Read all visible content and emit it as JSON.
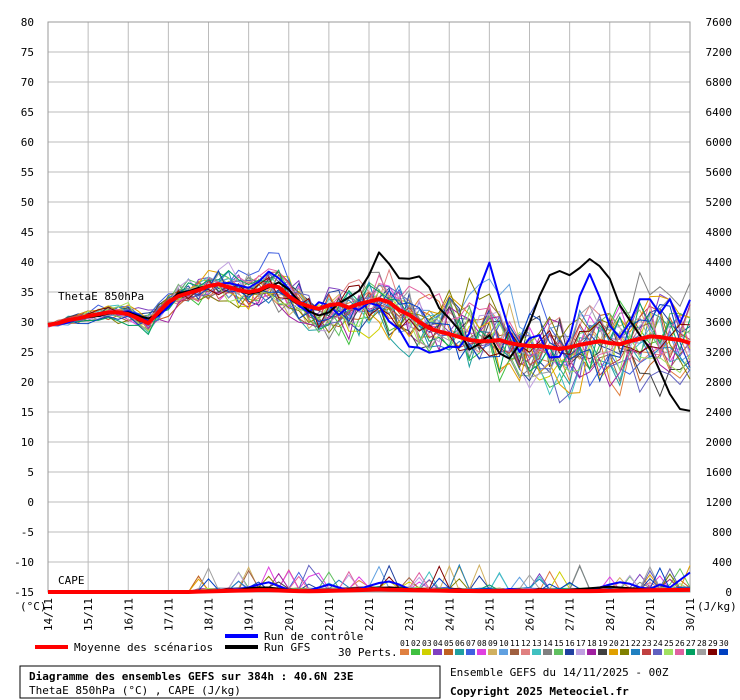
{
  "chart_data": {
    "type": "line",
    "title": "Diagramme des ensembles GEFS sur 384h : 40.6N 23E",
    "subtitle": "ThetaE 850hPa (°C) , CAPE (J/kg)",
    "run_label": "Ensemble GEFS du 14/11/2025 - 00Z",
    "copyright": "Copyright 2025 Meteociel.fr",
    "y_left_unit": "(°C)",
    "y_right_unit": "(J/kg)",
    "y_left_ticks": [
      80,
      75,
      70,
      65,
      60,
      55,
      50,
      45,
      40,
      35,
      30,
      25,
      20,
      15,
      10,
      5,
      0,
      -5,
      -10,
      -15
    ],
    "y_right_ticks": [
      7600,
      7200,
      6800,
      6400,
      6000,
      5600,
      5200,
      4800,
      4400,
      4000,
      3600,
      3200,
      2800,
      2400,
      2000,
      1600,
      1200,
      800,
      400,
      0
    ],
    "ylim_left": [
      -15,
      80
    ],
    "ylim_right": [
      0,
      7600
    ],
    "x_ticks": [
      "14/11",
      "15/11",
      "16/11",
      "17/11",
      "18/11",
      "19/11",
      "20/11",
      "21/11",
      "22/11",
      "23/11",
      "24/11",
      "25/11",
      "26/11",
      "27/11",
      "28/11",
      "29/11",
      "30/11"
    ],
    "panel_labels": {
      "thetae": "ThetaE 850hPa",
      "cape": "CAPE"
    },
    "legend": {
      "mean": "Moyenne des scénarios",
      "control": "Run de contrôle",
      "gfs": "Run GFS",
      "perts": "30 Perts.",
      "pert_ids": [
        "01",
        "02",
        "03",
        "04",
        "05",
        "06",
        "07",
        "08",
        "09",
        "10",
        "11",
        "12",
        "13",
        "14",
        "15",
        "16",
        "17",
        "18",
        "19",
        "20",
        "21",
        "22",
        "23",
        "24",
        "25",
        "26",
        "27",
        "28",
        "29",
        "30"
      ],
      "pert_colors": [
        "#e08040",
        "#40c040",
        "#d0d000",
        "#8040c0",
        "#c06020",
        "#20a0a0",
        "#4060e0",
        "#e040e0",
        "#d0b060",
        "#60a0e0",
        "#a06040",
        "#e08080",
        "#40c0c0",
        "#808080",
        "#60c060",
        "#2040a0",
        "#c0a0e0",
        "#a020a0",
        "#404040",
        "#e0a000",
        "#808000",
        "#2080c0",
        "#c04040",
        "#6060c0",
        "#a0e060",
        "#e060a0",
        "#00a060",
        "#a0a0a0",
        "#800000",
        "#0040c0"
      ],
      "mean_color": "#ff0000",
      "control_color": "#0000ff",
      "gfs_color": "#000000"
    },
    "x": [
      0,
      6,
      12,
      18,
      24,
      30,
      36,
      42,
      48,
      54,
      60,
      66,
      72,
      78,
      84,
      90,
      96,
      102,
      108,
      114,
      120,
      126,
      132,
      138,
      144,
      150,
      156,
      162,
      168,
      174,
      180,
      186,
      192,
      198,
      204,
      210,
      216,
      222,
      228,
      234,
      240,
      246,
      252,
      258,
      264,
      270,
      276,
      282,
      288,
      294,
      300,
      306,
      312,
      318,
      324,
      330,
      336,
      342,
      348,
      354,
      360,
      366,
      372,
      378,
      384
    ],
    "series": [
      {
        "name": "Moyenne des scénarios",
        "role": "mean",
        "values": [
          29.5,
          29.8,
          30.3,
          30.6,
          31.0,
          31.3,
          31.6,
          31.6,
          31.3,
          30.6,
          29.8,
          31.6,
          33.3,
          34.3,
          34.8,
          35.3,
          36.0,
          36.3,
          35.8,
          35.3,
          35.0,
          35.3,
          36.1,
          35.8,
          34.3,
          33.2,
          32.6,
          32.2,
          32.8,
          33.0,
          32.4,
          33.0,
          33.4,
          33.8,
          33.3,
          32.0,
          31.2,
          30.0,
          29.0,
          28.4,
          28.0,
          27.5,
          27.0,
          26.8,
          26.8,
          27.0,
          26.5,
          26.2,
          26.0,
          26.0,
          25.8,
          25.5,
          25.8,
          26.2,
          26.5,
          26.8,
          26.5,
          26.3,
          26.8,
          27.2,
          27.6,
          27.5,
          27.2,
          27.0,
          26.5
        ]
      },
      {
        "name": "Run de contrôle",
        "role": "control",
        "values": [
          29.6,
          29.6,
          29.9,
          30.6,
          31.0,
          31.1,
          31.4,
          31.5,
          31.8,
          31.2,
          30.1,
          31.0,
          32.5,
          34.4,
          34.8,
          35.6,
          35.9,
          36.4,
          36.5,
          36.1,
          35.7,
          36.7,
          38.4,
          37.3,
          35.6,
          32.7,
          31.6,
          33.3,
          32.8,
          31.2,
          32.6,
          32.0,
          33.2,
          32.7,
          30.1,
          28.8,
          25.9,
          25.7,
          24.9,
          25.2,
          25.9,
          25.8,
          28.1,
          35.5,
          39.9,
          34.0,
          28.5,
          25.0,
          27.3,
          27.8,
          24.1,
          24.2,
          27.3,
          34.3,
          38.0,
          34.1,
          29.4,
          27.4,
          29.9,
          33.8,
          33.8,
          31.4,
          33.8,
          29.8,
          33.7
        ]
      },
      {
        "name": "Run GFS",
        "role": "gfs",
        "values": [
          29.6,
          29.8,
          30.3,
          30.5,
          30.8,
          31.0,
          31.4,
          31.5,
          31.6,
          31.0,
          30.6,
          31.2,
          33.3,
          34.8,
          35.1,
          35.7,
          36.0,
          36.2,
          35.9,
          35.2,
          34.7,
          35.0,
          35.8,
          36.6,
          35.4,
          33.5,
          31.8,
          31.1,
          31.6,
          33.1,
          34.1,
          35.2,
          37.8,
          41.6,
          39.7,
          37.3,
          37.2,
          37.6,
          35.8,
          32.3,
          30.6,
          28.6,
          25.4,
          26.4,
          27.8,
          24.8,
          23.9,
          26.3,
          29.8,
          34.3,
          37.8,
          38.5,
          37.8,
          39.0,
          40.5,
          39.3,
          37.2,
          32.8,
          30.3,
          27.8,
          25.6,
          21.8,
          18.0,
          15.5,
          15.2
        ]
      },
      {
        "name": "Moyenne des scénarios CAPE",
        "role": "mean_cape",
        "values": [
          0,
          0,
          0,
          0,
          0,
          0,
          0,
          0,
          0,
          0,
          0,
          0,
          0,
          0,
          0,
          5,
          8,
          12,
          15,
          18,
          20,
          25,
          25,
          20,
          15,
          12,
          10,
          12,
          15,
          18,
          20,
          25,
          30,
          35,
          30,
          28,
          25,
          22,
          20,
          18,
          15,
          14,
          13,
          12,
          12,
          12,
          12,
          12,
          12,
          12,
          12,
          12,
          12,
          12,
          12,
          14,
          16,
          18,
          20,
          22,
          24,
          25,
          26,
          27,
          28
        ]
      },
      {
        "name": "Run de contrôle CAPE",
        "role": "control_cape",
        "values": [
          0,
          0,
          0,
          0,
          0,
          0,
          0,
          0,
          0,
          0,
          0,
          0,
          0,
          0,
          0,
          0,
          0,
          20,
          30,
          40,
          60,
          100,
          130,
          80,
          30,
          10,
          20,
          60,
          100,
          60,
          20,
          40,
          80,
          120,
          140,
          100,
          40,
          20,
          10,
          20,
          30,
          20,
          10,
          10,
          10,
          20,
          40,
          30,
          10,
          10,
          10,
          10,
          20,
          30,
          40,
          60,
          100,
          130,
          110,
          60,
          40,
          100,
          60,
          160,
          260
        ]
      },
      {
        "name": "Run GFS CAPE",
        "role": "gfs_cape",
        "values": [
          0,
          0,
          0,
          0,
          0,
          0,
          0,
          0,
          0,
          0,
          0,
          0,
          0,
          0,
          0,
          0,
          0,
          10,
          20,
          30,
          50,
          60,
          60,
          40,
          30,
          20,
          20,
          20,
          30,
          20,
          20,
          30,
          40,
          50,
          60,
          50,
          40,
          30,
          20,
          20,
          20,
          20,
          20,
          20,
          20,
          20,
          20,
          20,
          20,
          20,
          20,
          20,
          30,
          40,
          50,
          60,
          70,
          60,
          50,
          40,
          30,
          20,
          20,
          20,
          20
        ]
      }
    ]
  }
}
